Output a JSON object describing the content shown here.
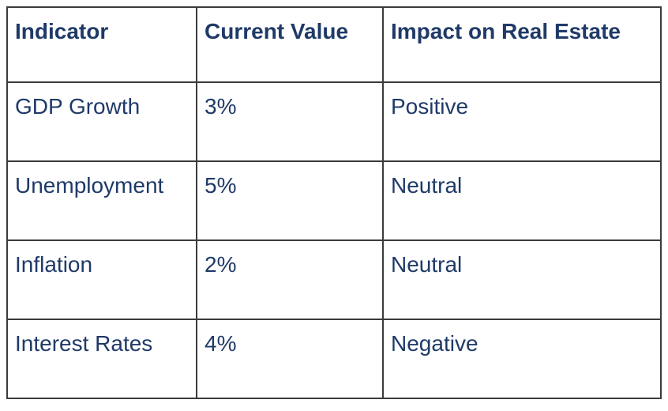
{
  "colors": {
    "text": "#1f3a68",
    "border": "#3b3b3b",
    "background": "#ffffff"
  },
  "table": {
    "columns": [
      "Indicator",
      "Current Value",
      "Impact on Real Estate"
    ],
    "rows": [
      {
        "indicator": "GDP Growth",
        "value": "3%",
        "impact": "Positive"
      },
      {
        "indicator": "Unemployment",
        "value": "5%",
        "impact": "Neutral"
      },
      {
        "indicator": "Inflation",
        "value": "2%",
        "impact": "Neutral"
      },
      {
        "indicator": "Interest Rates",
        "value": "4%",
        "impact": "Negative"
      }
    ]
  },
  "chart_data": {
    "type": "table",
    "title": "",
    "columns": [
      "Indicator",
      "Current Value",
      "Impact on Real Estate"
    ],
    "rows": [
      [
        "GDP Growth",
        "3%",
        "Positive"
      ],
      [
        "Unemployment",
        "5%",
        "Neutral"
      ],
      [
        "Inflation",
        "2%",
        "Neutral"
      ],
      [
        "Interest Rates",
        "4%",
        "Negative"
      ]
    ],
    "numeric_values": {
      "GDP Growth": 3,
      "Unemployment": 5,
      "Inflation": 2,
      "Interest Rates": 4
    },
    "value_unit": "%"
  }
}
